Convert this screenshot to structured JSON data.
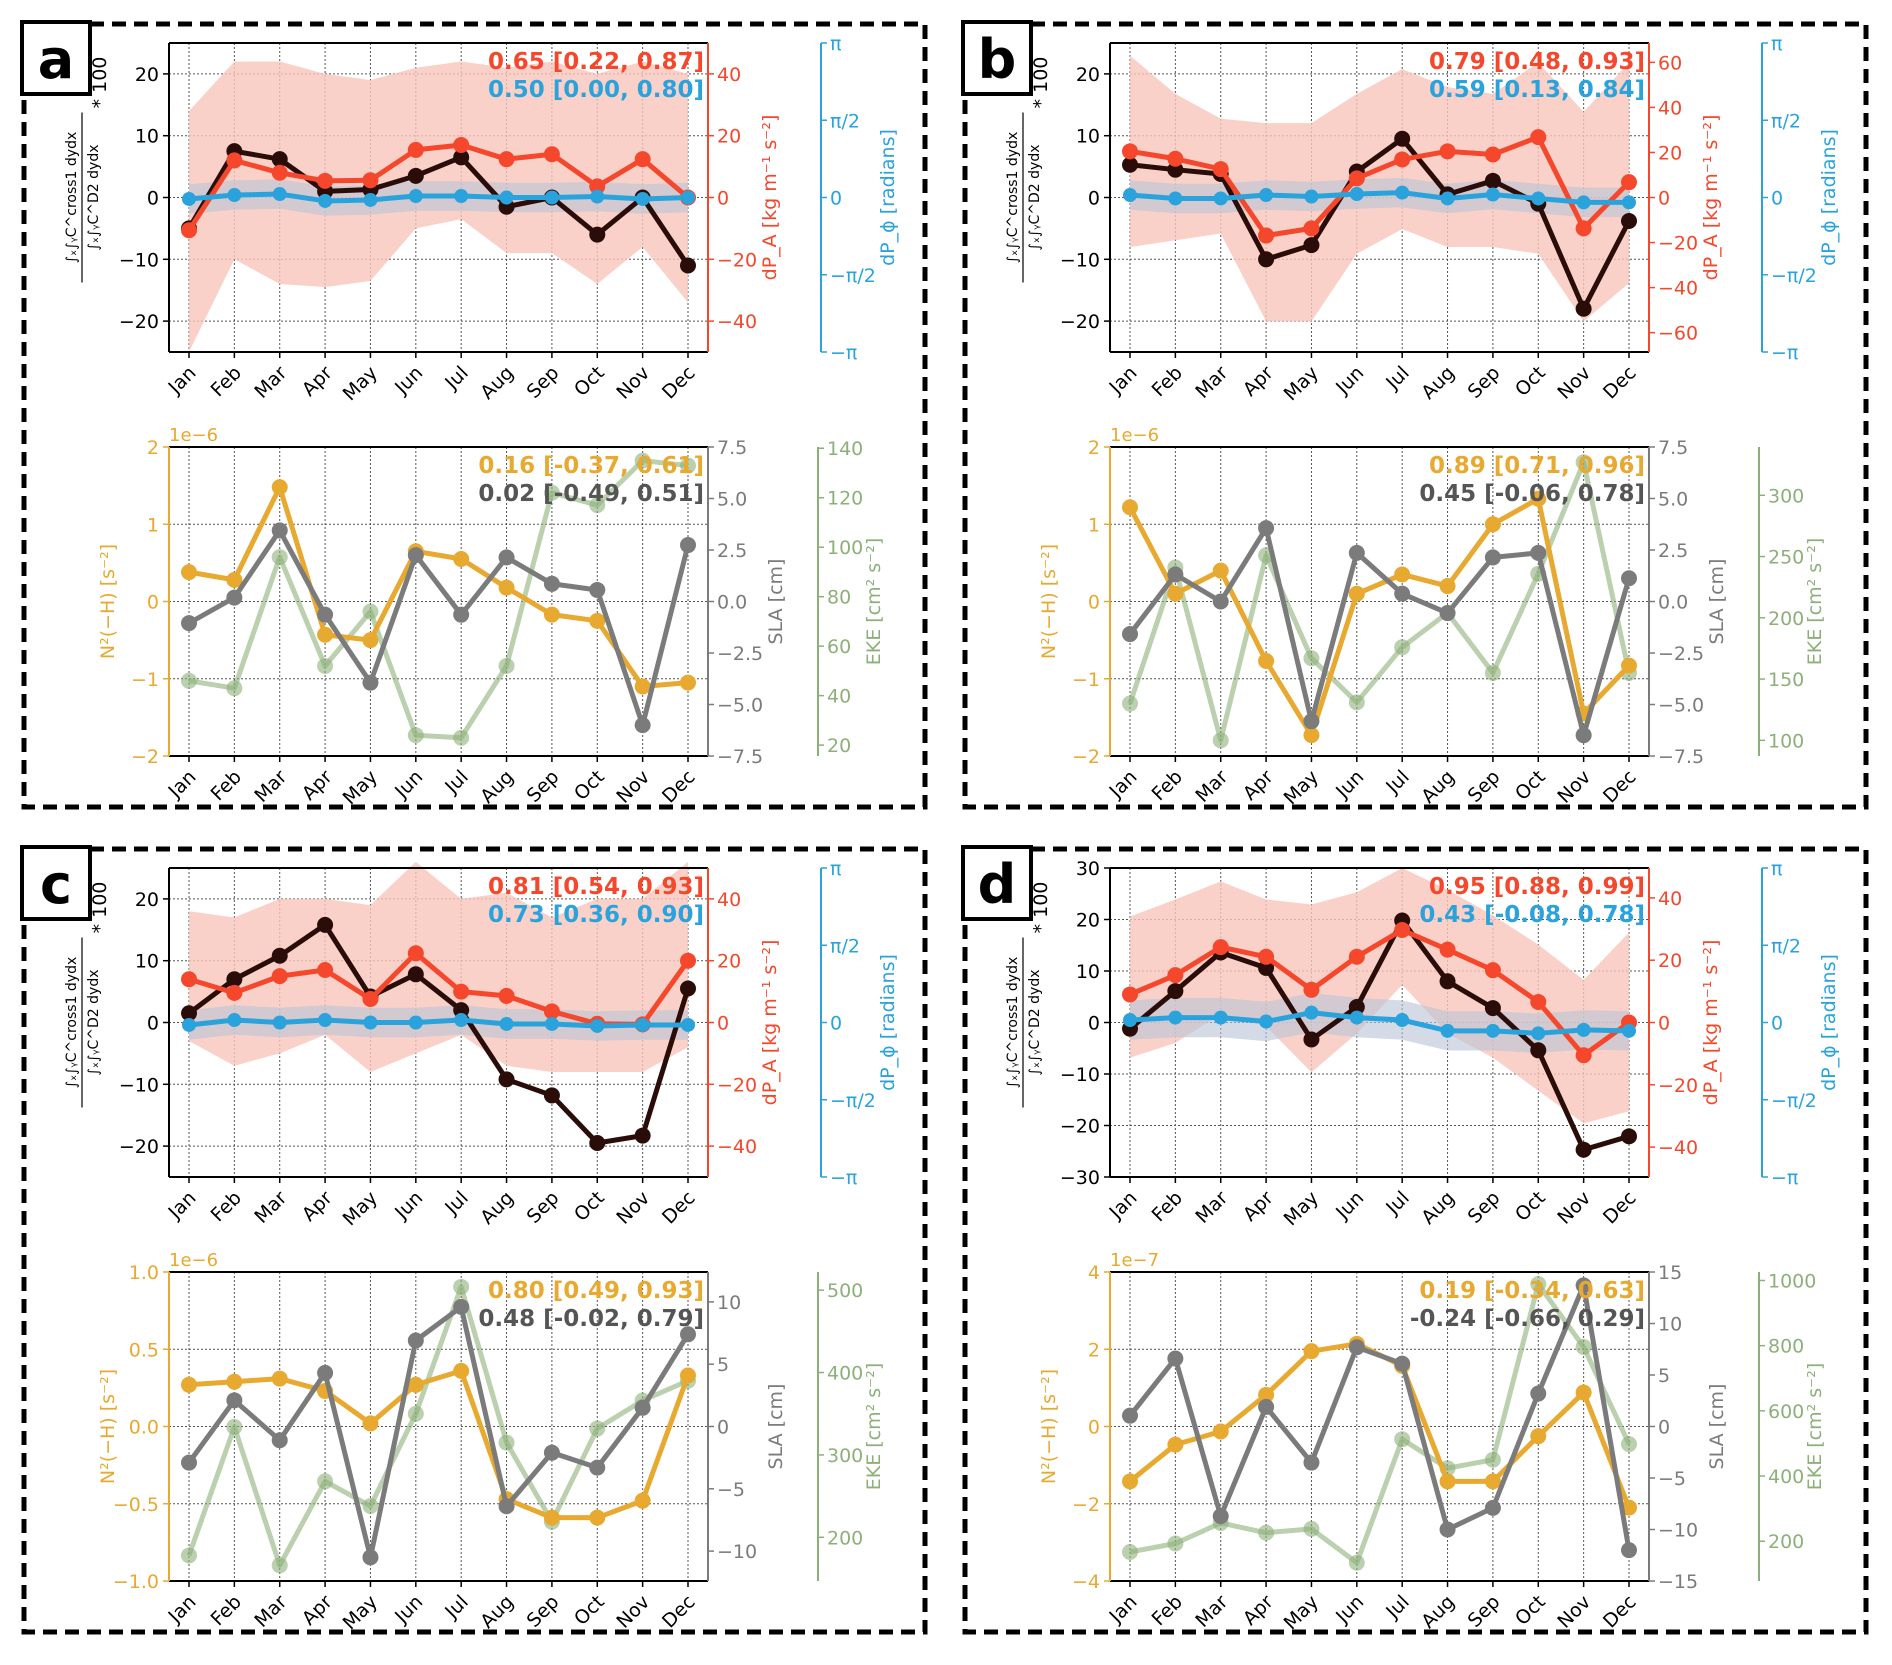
{
  "months": [
    "Jan",
    "Feb",
    "Mar",
    "Apr",
    "May",
    "Jun",
    "Jul",
    "Aug",
    "Sep",
    "Oct",
    "Nov",
    "Dec"
  ],
  "labels": {
    "ratio_numerator": "∫ₓ∫ᵧC^cross1 dydx",
    "ratio_denominator": "∫ₓ∫ᵧC^D2 dydx",
    "ratio_suffix": "* 100",
    "amp": "dP_A [kg m⁻¹ s⁻²]",
    "phase": "dP_ϕ [radians]",
    "n2": "N²(−H) [s⁻²]",
    "sla": "SLA [cm]",
    "eke": "EKE [cm² s⁻²]"
  },
  "phase_ticks": [
    -3.1416,
    -1.5708,
    0,
    1.5708,
    3.1416
  ],
  "phase_tick_labels": [
    "−π",
    "−π/2",
    "0",
    "π/2",
    "π"
  ],
  "colors": {
    "ratio": "#2a0d08",
    "amp": "#f5472b",
    "amp_band": "#f9c6bc",
    "phase": "#2aa3dc",
    "phase_band": "#b9c3d6",
    "n2": "#e8a931",
    "sla": "#7b7b7b",
    "eke": "#8db07a"
  },
  "chart_data": [
    {
      "type": "line",
      "letter": "a",
      "top": {
        "left_range": [
          -25,
          25
        ],
        "left_ticks": [
          "−20",
          "−10",
          "0",
          "10",
          "20"
        ],
        "amp_range": [
          -50,
          50
        ],
        "amp_ticks": [
          "−40",
          "−20",
          "0",
          "20",
          "40"
        ],
        "phase_range": [
          -3.1416,
          3.1416
        ],
        "ratio": [
          -5,
          7.5,
          6.2,
          1,
          1.3,
          3.5,
          6.5,
          -1.5,
          0,
          -6,
          0,
          -11
        ],
        "amp": [
          -10.6,
          12,
          8,
          5.4,
          5.6,
          15.4,
          17,
          12.4,
          14,
          3.6,
          12.4,
          0
        ],
        "amp_band_upper": [
          28,
          44,
          44,
          40,
          38,
          42,
          44,
          42,
          44,
          40,
          44,
          40
        ],
        "amp_band_lower": [
          -50,
          -20,
          -28,
          -29,
          -27,
          -10,
          -7,
          -18,
          -18,
          -28,
          -16,
          -34
        ],
        "phase": [
          -0.03,
          0.05,
          0.07,
          -0.07,
          -0.05,
          0.03,
          0.03,
          0,
          0,
          0.02,
          -0.03,
          0
        ],
        "phase_band_halfwidth": 0.3,
        "corr_amp": "0.65 [0.22, 0.87]",
        "corr_phase": "0.50 [0.00, 0.80]"
      },
      "bottom": {
        "n2_range": [
          -2,
          2
        ],
        "n2_ticks": [
          "−2",
          "−1",
          "0",
          "1",
          "2"
        ],
        "n2_offset": "1e−6",
        "sla_range": [
          -7.5,
          7.5
        ],
        "sla_ticks": [
          "−7.5",
          "−5.0",
          "−2.5",
          "0.0",
          "2.5",
          "5.0",
          "7.5"
        ],
        "eke_range": [
          15.6,
          140.5
        ],
        "eke_ticks": [
          "20",
          "40",
          "60",
          "80",
          "100",
          "120",
          "140"
        ],
        "n2": [
          0.38,
          0.28,
          1.48,
          -0.43,
          -0.5,
          0.65,
          0.55,
          0.18,
          -0.17,
          -0.25,
          -1.1,
          -1.05
        ],
        "sla": [
          -1.05,
          0.19,
          3.45,
          -0.64,
          -3.94,
          2.25,
          -0.64,
          2.14,
          0.86,
          0.56,
          -6,
          2.74
        ],
        "eke": [
          46,
          43,
          96,
          52,
          74,
          24,
          23,
          52,
          122,
          117,
          135,
          133
        ],
        "corr_n2": "0.16 [-0.37, 0.61]",
        "corr_sla": "0.02 [-0.49, 0.51]"
      }
    },
    {
      "type": "line",
      "letter": "b",
      "top": {
        "left_range": [
          -25,
          25
        ],
        "left_ticks": [
          "−20",
          "−10",
          "0",
          "10",
          "20"
        ],
        "amp_range": [
          -68.6,
          68.6
        ],
        "amp_ticks": [
          "−60",
          "−40",
          "−20",
          "0",
          "20",
          "40",
          "60"
        ],
        "phase_range": [
          -3.1416,
          3.1416
        ],
        "ratio": [
          5.3,
          4.5,
          3.8,
          -10,
          -7.7,
          4.2,
          9.5,
          0.5,
          2.7,
          -1,
          -18,
          -3.8
        ],
        "amp": [
          20.5,
          17.2,
          12.6,
          -16.9,
          -13.7,
          8.5,
          16.9,
          20.5,
          19.1,
          26.8,
          -13.7,
          6.8
        ],
        "amp_band_upper": [
          63,
          46,
          35,
          33,
          33,
          46,
          57,
          49,
          46,
          60,
          38,
          60
        ],
        "amp_band_lower": [
          -22,
          -19,
          -16,
          -55,
          -55,
          -25,
          -14,
          -22,
          -22,
          -25,
          -55,
          -38
        ],
        "phase": [
          0.05,
          -0.02,
          -0.02,
          0.05,
          0.02,
          0.07,
          0.1,
          -0.02,
          0.06,
          -0.02,
          -0.1,
          -0.1
        ],
        "phase_band_halfwidth": 0.3,
        "corr_amp": "0.79 [0.48, 0.93]",
        "corr_phase": "0.59 [0.13, 0.84]"
      },
      "bottom": {
        "n2_range": [
          -2,
          2
        ],
        "n2_ticks": [
          "−2",
          "−1",
          "0",
          "1",
          "2"
        ],
        "n2_offset": "1e−6",
        "sla_range": [
          -7.5,
          7.5
        ],
        "sla_ticks": [
          "−7.5",
          "−5.0",
          "−2.5",
          "0.0",
          "2.5",
          "5.0",
          "7.5"
        ],
        "eke_range": [
          87.2,
          339.4
        ],
        "eke_ticks": [
          "100",
          "150",
          "200",
          "250",
          "300"
        ],
        "n2": [
          1.22,
          0.1,
          0.4,
          -0.77,
          -1.73,
          0.1,
          0.35,
          0.2,
          1.0,
          1.33,
          -1.45,
          -0.83
        ],
        "sla": [
          -1.58,
          1.31,
          0,
          3.56,
          -5.81,
          2.36,
          0.38,
          -0.56,
          2.14,
          2.36,
          -6.49,
          1.13
        ],
        "eke": [
          130,
          241,
          100,
          251,
          167,
          131,
          176,
          204,
          155,
          236,
          327,
          155
        ],
        "corr_n2": "0.89 [0.71, 0.96]",
        "corr_sla": "0.45 [-0.06, 0.78]"
      }
    },
    {
      "type": "line",
      "letter": "c",
      "top": {
        "left_range": [
          -25,
          25
        ],
        "left_ticks": [
          "−20",
          "−10",
          "0",
          "10",
          "20"
        ],
        "amp_range": [
          -50,
          50
        ],
        "amp_ticks": [
          "−40",
          "−20",
          "0",
          "20",
          "40"
        ],
        "phase_range": [
          -3.1416,
          3.1416
        ],
        "ratio": [
          1.5,
          7,
          10.8,
          15.8,
          4.2,
          7.8,
          2,
          -9.2,
          -11.8,
          -19.5,
          -18.3,
          5.5
        ],
        "amp": [
          14,
          9.6,
          15,
          17,
          7.6,
          22.4,
          10,
          8.6,
          3.6,
          -0.4,
          -0.6,
          20
        ],
        "amp_band_upper": [
          36,
          34,
          40,
          40,
          38,
          52,
          40,
          42,
          34,
          40,
          40,
          52
        ],
        "amp_band_lower": [
          -6,
          -14,
          -10,
          -4,
          -16,
          -10,
          -4,
          -14,
          -16,
          -16,
          -16,
          -8
        ],
        "phase": [
          -0.05,
          0.05,
          0,
          0.05,
          0,
          0,
          0.05,
          -0.03,
          -0.03,
          -0.07,
          -0.05,
          -0.05
        ],
        "phase_band_halfwidth": 0.3,
        "corr_amp": "0.81 [0.54, 0.93]",
        "corr_phase": "0.73 [0.36, 0.90]"
      },
      "bottom": {
        "n2_range": [
          -1,
          1
        ],
        "n2_ticks": [
          "−1.0",
          "−0.5",
          "0.0",
          "0.5",
          "1.0"
        ],
        "n2_offset": "1e−6",
        "sla_range": [
          -12.4,
          12.4
        ],
        "sla_ticks": [
          "−10",
          "−5",
          "0",
          "5",
          "10"
        ],
        "eke_range": [
          147,
          522
        ],
        "eke_ticks": [
          "200",
          "300",
          "400",
          "500"
        ],
        "n2": [
          0.27,
          0.29,
          0.31,
          0.23,
          0.02,
          0.27,
          0.36,
          -0.47,
          -0.59,
          -0.59,
          -0.48,
          0.33
        ],
        "sla": [
          -2.9,
          2.1,
          -1.1,
          4.3,
          -10.5,
          6.9,
          9.6,
          -6.4,
          -2.1,
          -3.3,
          1.5,
          7.4
        ],
        "eke": [
          178,
          334,
          166,
          268,
          238,
          350,
          504,
          315,
          219,
          332,
          366,
          390
        ],
        "corr_n2": "0.80 [0.49, 0.93]",
        "corr_sla": "0.48 [-0.02, 0.79]"
      }
    },
    {
      "type": "line",
      "letter": "d",
      "top": {
        "left_range": [
          -30,
          30
        ],
        "left_ticks": [
          "−30",
          "−20",
          "−10",
          "0",
          "10",
          "20",
          "30"
        ],
        "amp_range": [
          -49.6,
          49.6
        ],
        "amp_ticks": [
          "−40",
          "−20",
          "0",
          "20",
          "40"
        ],
        "phase_range": [
          -3.1416,
          3.1416
        ],
        "ratio": [
          -1.2,
          6.1,
          13.6,
          10.6,
          -3.3,
          3,
          19.8,
          8,
          2.8,
          -5.4,
          -24.7,
          -22.1
        ],
        "amp": [
          9,
          15.2,
          24.2,
          21.1,
          10.5,
          21.1,
          29.7,
          23.4,
          16.8,
          6.6,
          -10.5,
          0
        ],
        "amp_band_upper": [
          34,
          39.5,
          45.3,
          39.5,
          37.9,
          41.8,
          49.6,
          42.6,
          34.4,
          25,
          13.7,
          28.9
        ],
        "amp_band_lower": [
          -11.3,
          -6.6,
          2.7,
          -1.2,
          -16,
          -3.5,
          12.1,
          -3.5,
          -11.3,
          -21.9,
          -32.4,
          -28.5
        ],
        "phase": [
          0.05,
          0.1,
          0.1,
          0.02,
          0.2,
          0.1,
          0.05,
          -0.17,
          -0.17,
          -0.22,
          -0.15,
          -0.17
        ],
        "phase_band_halfwidth": 0.4,
        "corr_amp": "0.95 [0.88, 0.99]",
        "corr_phase": "0.43 [-0.08, 0.78]"
      },
      "bottom": {
        "n2_range": [
          -4,
          4
        ],
        "n2_ticks": [
          "−4",
          "−2",
          "0",
          "2",
          "4"
        ],
        "n2_offset": "1e−7",
        "sla_range": [
          -15,
          15
        ],
        "sla_ticks": [
          "−15",
          "−10",
          "−5",
          "0",
          "5",
          "10",
          "15"
        ],
        "eke_range": [
          78,
          1026
        ],
        "eke_ticks": [
          "200",
          "400",
          "600",
          "800",
          "1000"
        ],
        "n2": [
          -1.42,
          -0.47,
          -0.13,
          0.82,
          1.95,
          2.14,
          1.57,
          -1.42,
          -1.42,
          -0.25,
          0.88,
          -2.1
        ],
        "sla": [
          1.05,
          6.6,
          -8.7,
          1.9,
          -3.5,
          7.7,
          6.1,
          -10,
          -7.9,
          3.2,
          13.7,
          -12
        ],
        "eke": [
          167,
          193,
          256,
          226,
          238,
          134,
          513,
          424,
          450,
          989,
          796,
          498
        ],
        "corr_n2": "0.19 [-0.34, 0.63]",
        "corr_sla": "-0.24 [-0.66, 0.29]"
      }
    }
  ]
}
